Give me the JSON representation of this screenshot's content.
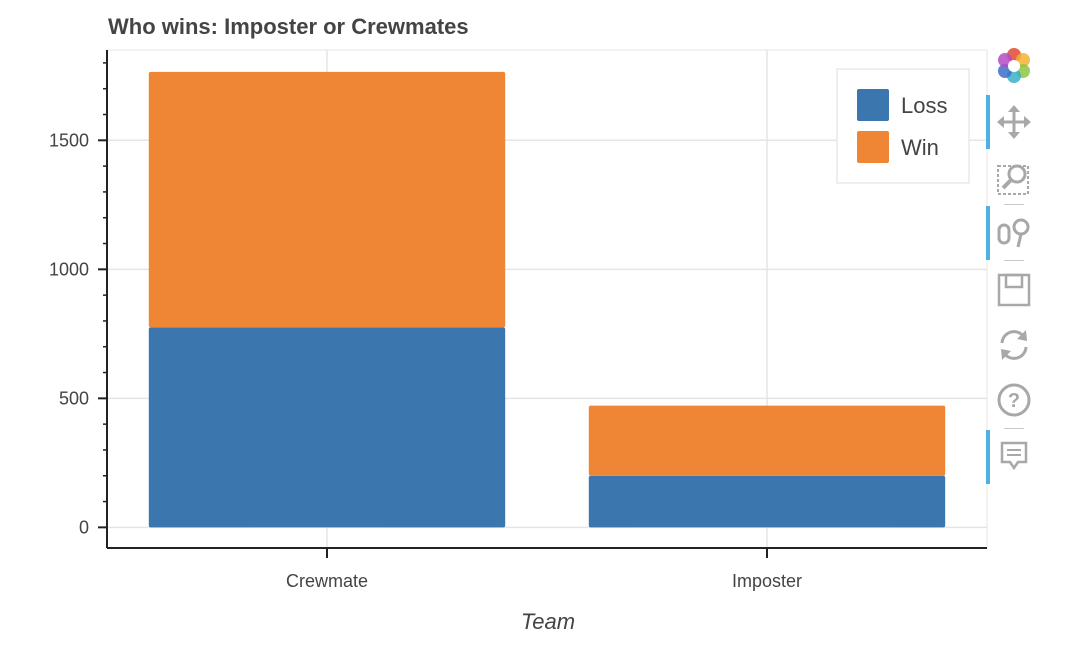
{
  "chart_data": {
    "type": "bar",
    "stacked": true,
    "title": "Who wins: Imposter or Crewmates",
    "xlabel": "Team",
    "ylabel": "",
    "categories": [
      "Crewmate",
      "Imposter"
    ],
    "series": [
      {
        "name": "Loss",
        "color": "#3b76af",
        "values": [
          775,
          200
        ]
      },
      {
        "name": "Win",
        "color": "#ef8636",
        "values": [
          990,
          272
        ]
      }
    ],
    "ylim": [
      -80,
      1850
    ],
    "yticks": [
      0,
      500,
      1000,
      1500
    ],
    "y_minor_step": 100,
    "grid": true,
    "legend_position": "top-right"
  },
  "toolbar": {
    "tools": [
      {
        "name": "bokeh-logo-icon",
        "interactable": false
      },
      {
        "name": "pan-tool-icon",
        "active": true
      },
      {
        "name": "box-zoom-tool-icon",
        "active": false
      },
      {
        "name": "wheel-zoom-tool-icon",
        "active": true
      },
      {
        "name": "save-tool-icon",
        "active": false
      },
      {
        "name": "reset-tool-icon",
        "active": false
      },
      {
        "name": "help-tool-icon",
        "active": false
      },
      {
        "name": "hover-tool-icon",
        "active": true
      }
    ]
  }
}
